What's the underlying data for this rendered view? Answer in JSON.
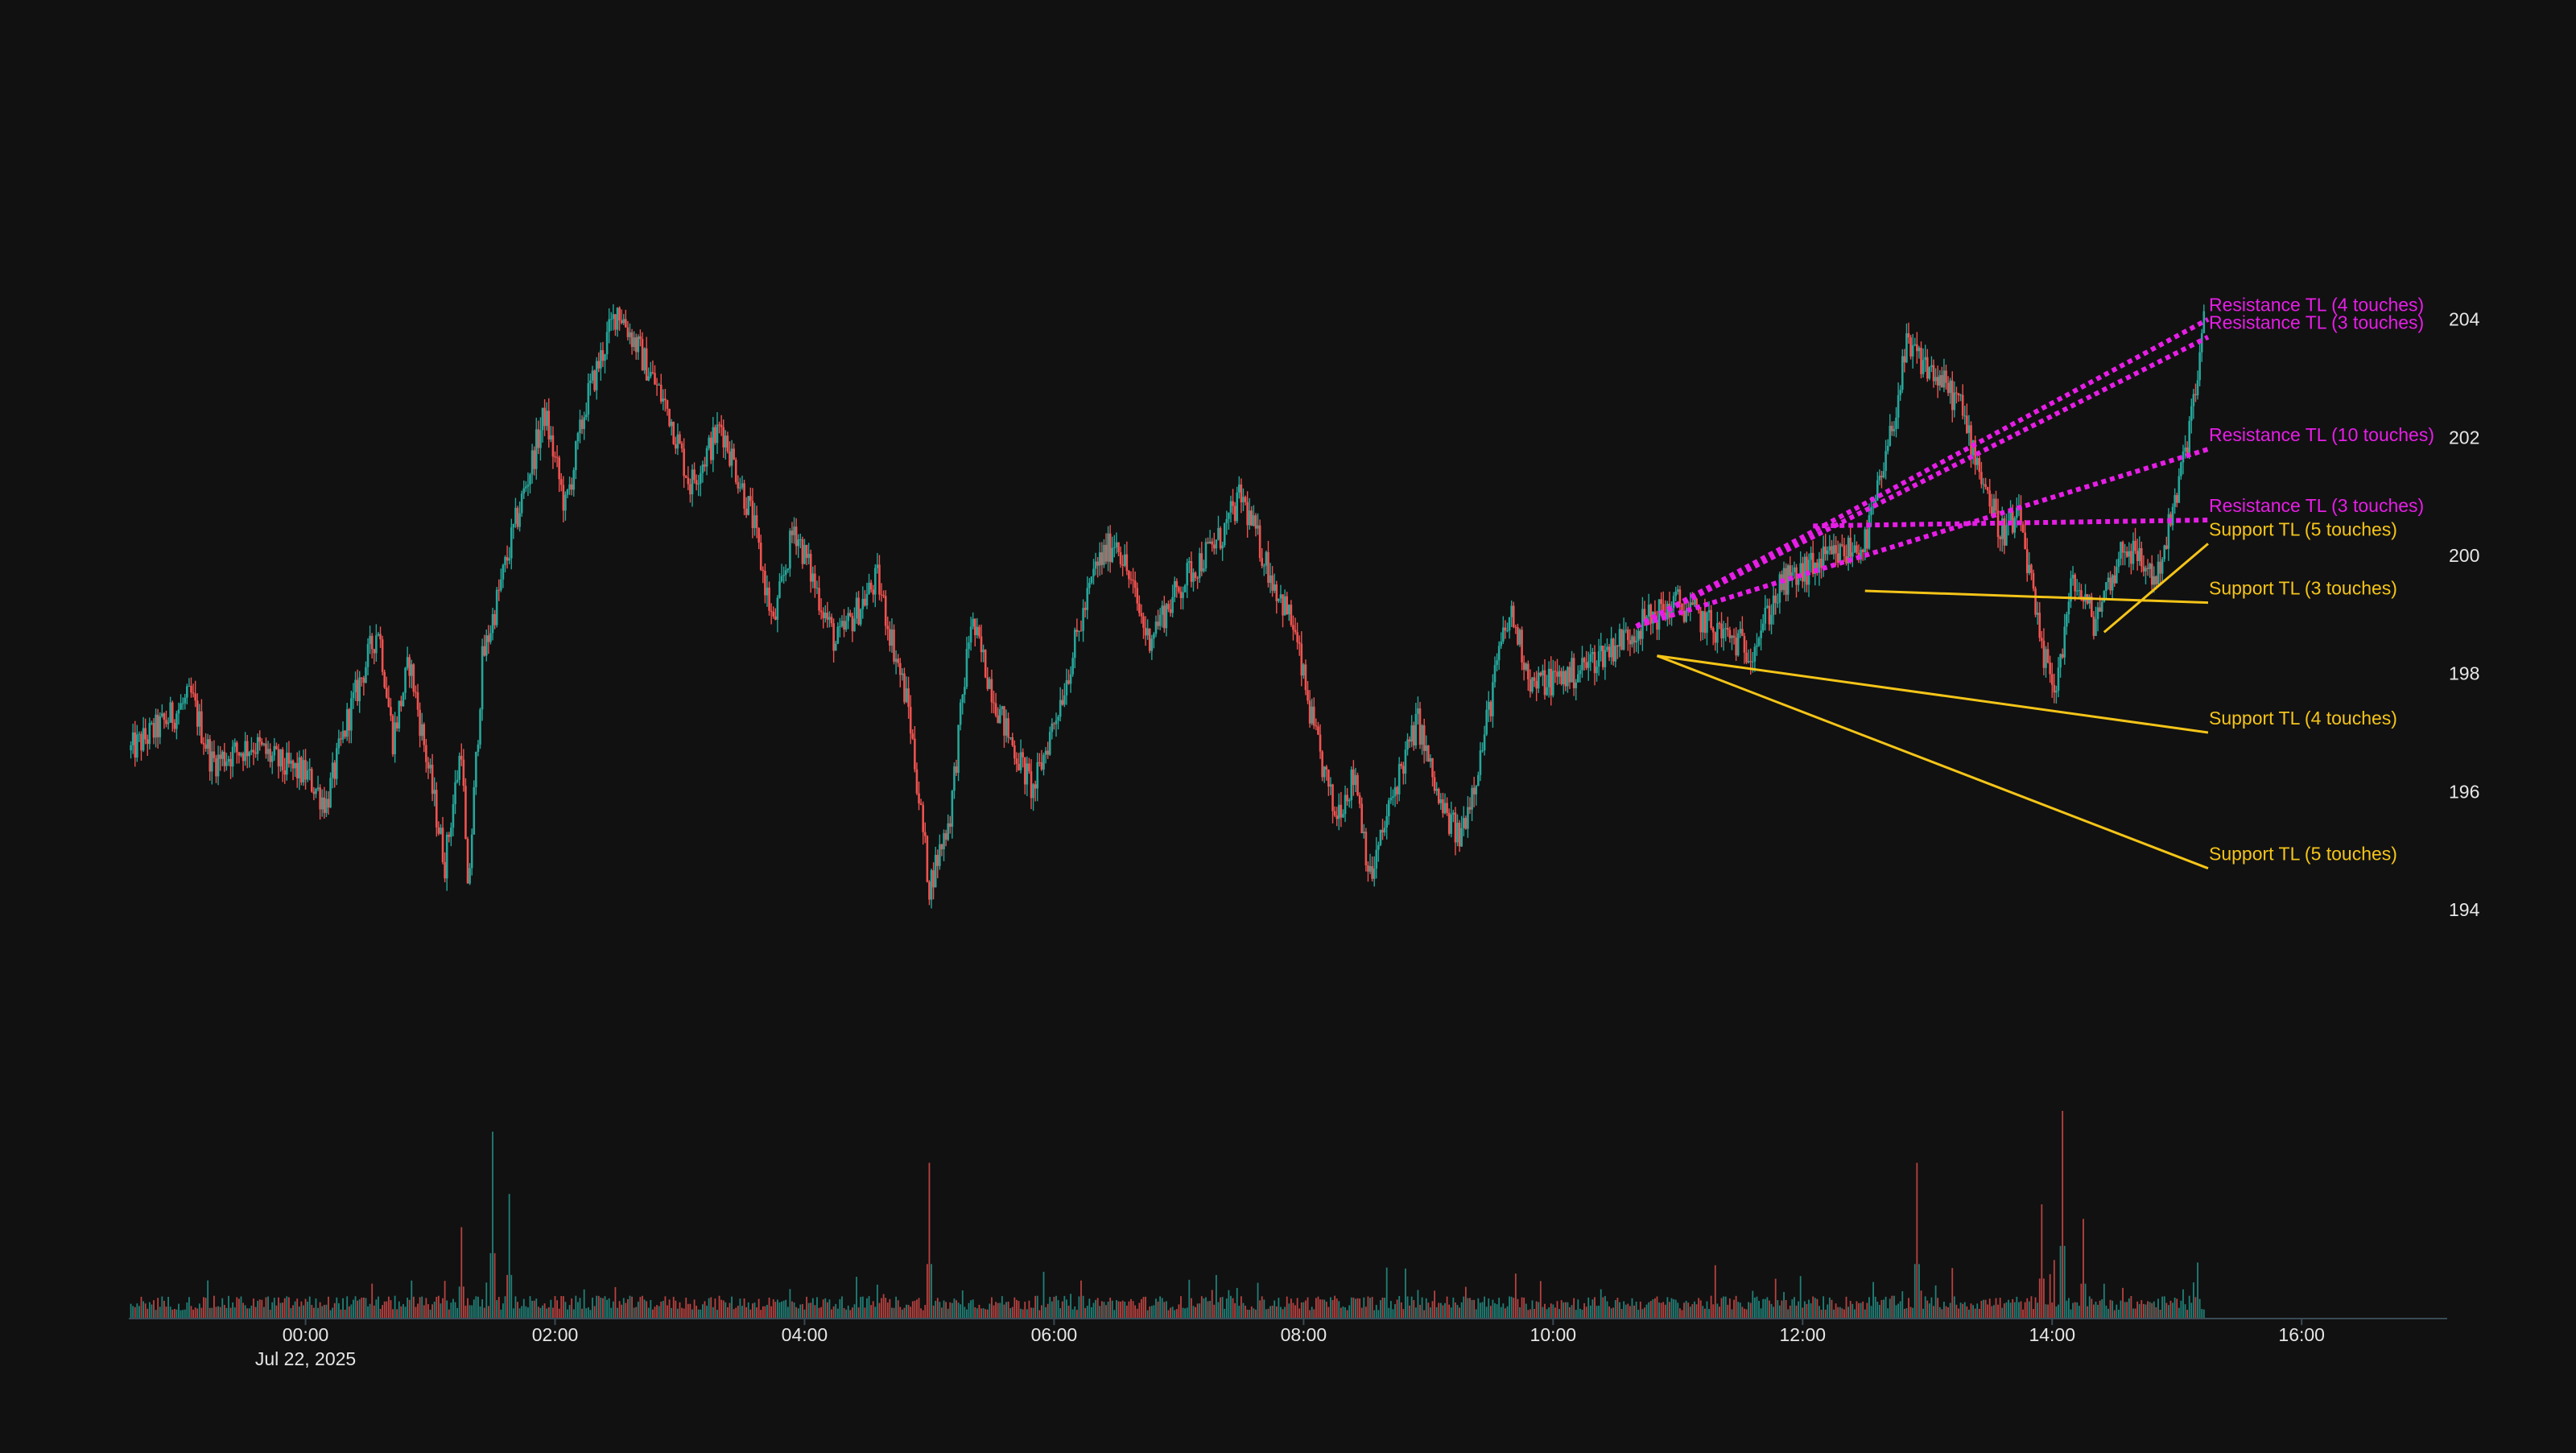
{
  "chart_data": {
    "type": "candlestick",
    "title": "",
    "xlabel": "",
    "ylabel": "",
    "background": "#111111",
    "colors": {
      "up": "#26a69a",
      "down": "#ef5350",
      "resistance": "#e61ee6",
      "support": "#f5c518",
      "text": "#e6e6e6"
    },
    "x_range": [
      "2025-07-21 22:35",
      "2025-07-22 17:10"
    ],
    "ylim": [
      192.5,
      206.0
    ],
    "y_ticks": [
      "194",
      "196",
      "198",
      "200",
      "202",
      "204"
    ],
    "x_ticks": [
      {
        "t": "2025-07-22 00:00",
        "label": "00:00",
        "sublabel": "Jul 22, 2025"
      },
      {
        "t": "2025-07-22 02:00",
        "label": "02:00"
      },
      {
        "t": "2025-07-22 04:00",
        "label": "04:00"
      },
      {
        "t": "2025-07-22 06:00",
        "label": "06:00"
      },
      {
        "t": "2025-07-22 08:00",
        "label": "08:00"
      },
      {
        "t": "2025-07-22 10:00",
        "label": "10:00"
      },
      {
        "t": "2025-07-22 12:00",
        "label": "12:00"
      },
      {
        "t": "2025-07-22 14:00",
        "label": "14:00"
      },
      {
        "t": "2025-07-22 16:00",
        "label": "16:00"
      }
    ],
    "price_path": [
      [
        "2025-07-21 22:36",
        196.7
      ],
      [
        "2025-07-21 22:50",
        197.1
      ],
      [
        "2025-07-21 23:05",
        197.6
      ],
      [
        "2025-07-21 23:15",
        196.5
      ],
      [
        "2025-07-21 23:35",
        196.8
      ],
      [
        "2025-07-21 23:50",
        196.4
      ],
      [
        "2025-07-22 00:00",
        196.3
      ],
      [
        "2025-07-22 00:10",
        195.8
      ],
      [
        "2025-07-22 00:20",
        197.2
      ],
      [
        "2025-07-22 00:35",
        198.8
      ],
      [
        "2025-07-22 00:42",
        196.9
      ],
      [
        "2025-07-22 00:50",
        198.2
      ],
      [
        "2025-07-22 01:07",
        194.8
      ],
      [
        "2025-07-22 01:15",
        196.8
      ],
      [
        "2025-07-22 01:18",
        194.2
      ],
      [
        "2025-07-22 01:25",
        198.2
      ],
      [
        "2025-07-22 01:40",
        200.4
      ],
      [
        "2025-07-22 01:55",
        202.4
      ],
      [
        "2025-07-22 02:05",
        200.8
      ],
      [
        "2025-07-22 02:15",
        202.6
      ],
      [
        "2025-07-22 02:30",
        204.2
      ],
      [
        "2025-07-22 02:40",
        203.5
      ],
      [
        "2025-07-22 02:55",
        202.4
      ],
      [
        "2025-07-22 03:05",
        201.2
      ],
      [
        "2025-07-22 03:20",
        202.2
      ],
      [
        "2025-07-22 03:35",
        200.6
      ],
      [
        "2025-07-22 03:45",
        198.8
      ],
      [
        "2025-07-22 03:55",
        200.5
      ],
      [
        "2025-07-22 04:15",
        198.5
      ],
      [
        "2025-07-22 04:35",
        199.6
      ],
      [
        "2025-07-22 04:50",
        197.4
      ],
      [
        "2025-07-22 05:00",
        194.4
      ],
      [
        "2025-07-22 05:10",
        195.6
      ],
      [
        "2025-07-22 05:20",
        198.9
      ],
      [
        "2025-07-22 05:35",
        197.2
      ],
      [
        "2025-07-22 05:50",
        196.0
      ],
      [
        "2025-07-22 06:05",
        197.8
      ],
      [
        "2025-07-22 06:20",
        199.8
      ],
      [
        "2025-07-22 06:30",
        200.3
      ],
      [
        "2025-07-22 06:45",
        198.6
      ],
      [
        "2025-07-22 07:05",
        199.7
      ],
      [
        "2025-07-22 07:20",
        200.3
      ],
      [
        "2025-07-22 07:30",
        201.0
      ],
      [
        "2025-07-22 07:45",
        199.6
      ],
      [
        "2025-07-22 07:55",
        198.8
      ],
      [
        "2025-07-22 08:05",
        197.0
      ],
      [
        "2025-07-22 08:15",
        195.6
      ],
      [
        "2025-07-22 08:25",
        196.3
      ],
      [
        "2025-07-22 08:32",
        194.5
      ],
      [
        "2025-07-22 08:45",
        196.2
      ],
      [
        "2025-07-22 08:55",
        197.2
      ],
      [
        "2025-07-22 09:05",
        195.8
      ],
      [
        "2025-07-22 09:15",
        195.2
      ],
      [
        "2025-07-22 09:25",
        196.6
      ],
      [
        "2025-07-22 09:35",
        198.5
      ],
      [
        "2025-07-22 09:40",
        199.0
      ],
      [
        "2025-07-22 09:50",
        197.8
      ],
      [
        "2025-07-22 10:10",
        198.0
      ],
      [
        "2025-07-22 10:30",
        198.5
      ],
      [
        "2025-07-22 10:45",
        198.9
      ],
      [
        "2025-07-22 11:00",
        199.2
      ],
      [
        "2025-07-22 11:20",
        198.7
      ],
      [
        "2025-07-22 11:35",
        198.4
      ],
      [
        "2025-07-22 11:50",
        199.5
      ],
      [
        "2025-07-22 12:10",
        199.9
      ],
      [
        "2025-07-22 12:30",
        200.2
      ],
      [
        "2025-07-22 12:40",
        201.6
      ],
      [
        "2025-07-22 12:50",
        203.5
      ],
      [
        "2025-07-22 13:00",
        203.2
      ],
      [
        "2025-07-22 13:15",
        202.6
      ],
      [
        "2025-07-22 13:25",
        201.5
      ],
      [
        "2025-07-22 13:35",
        200.4
      ],
      [
        "2025-07-22 13:45",
        200.6
      ],
      [
        "2025-07-22 13:55",
        198.3
      ],
      [
        "2025-07-22 14:02",
        197.8
      ],
      [
        "2025-07-22 14:10",
        199.6
      ],
      [
        "2025-07-22 14:20",
        198.9
      ],
      [
        "2025-07-22 14:35",
        200.2
      ],
      [
        "2025-07-22 14:50",
        199.6
      ],
      [
        "2025-07-22 15:00",
        201.0
      ],
      [
        "2025-07-22 15:10",
        203.0
      ],
      [
        "2025-07-22 15:14",
        204.2
      ]
    ],
    "volume_spikes": [
      [
        "2025-07-22 01:15",
        0.44
      ],
      [
        "2025-07-22 01:30",
        0.9
      ],
      [
        "2025-07-22 01:38",
        0.6
      ],
      [
        "2025-07-22 05:00",
        0.75
      ],
      [
        "2025-07-22 12:55",
        0.75
      ],
      [
        "2025-07-22 13:55",
        0.55
      ],
      [
        "2025-07-22 14:05",
        1.0
      ],
      [
        "2025-07-22 14:15",
        0.48
      ],
      [
        "2025-07-22 15:10",
        0.27
      ]
    ],
    "trendlines": [
      {
        "kind": "resistance",
        "label": "Resistance TL (4 touches)",
        "start": [
          "2025-07-22 10:40",
          198.8
        ],
        "end": [
          "2025-07-22 15:15",
          204.0
        ]
      },
      {
        "kind": "resistance",
        "label": "Resistance TL (3 touches)",
        "start": [
          "2025-07-22 10:40",
          198.8
        ],
        "end": [
          "2025-07-22 15:15",
          203.7
        ]
      },
      {
        "kind": "resistance",
        "label": "Resistance TL (10 touches)",
        "start": [
          "2025-07-22 10:40",
          198.8
        ],
        "end": [
          "2025-07-22 15:15",
          201.8
        ]
      },
      {
        "kind": "resistance",
        "label": "Resistance TL (3 touches)",
        "start": [
          "2025-07-22 12:05",
          200.5
        ],
        "end": [
          "2025-07-22 15:15",
          200.6
        ]
      },
      {
        "kind": "support",
        "label": "Support TL (5 touches)",
        "start": [
          "2025-07-22 14:25",
          198.7
        ],
        "end": [
          "2025-07-22 15:15",
          200.2
        ]
      },
      {
        "kind": "support",
        "label": "Support TL (3 touches)",
        "start": [
          "2025-07-22 12:30",
          199.4
        ],
        "end": [
          "2025-07-22 15:15",
          199.2
        ]
      },
      {
        "kind": "support",
        "label": "Support TL (4 touches)",
        "start": [
          "2025-07-22 10:50",
          198.3
        ],
        "end": [
          "2025-07-22 15:15",
          197.0
        ]
      },
      {
        "kind": "support",
        "label": "Support TL (5 touches)",
        "start": [
          "2025-07-22 10:50",
          198.3
        ],
        "end": [
          "2025-07-22 15:15",
          194.7
        ]
      }
    ],
    "grid": false,
    "legend": "none"
  }
}
